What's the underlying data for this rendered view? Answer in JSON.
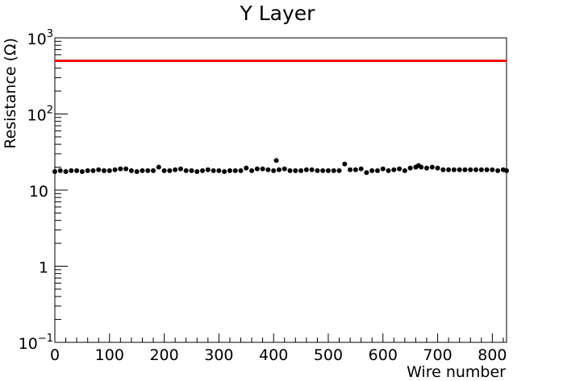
{
  "chart_data": {
    "type": "scatter",
    "title": "Y Layer",
    "x_label": "Wire number",
    "y_label": "Resistance (Ω)",
    "log_y": true,
    "xlim": [
      0,
      826
    ],
    "ylim": [
      0.1,
      1000
    ],
    "xticks": [
      0,
      100,
      200,
      300,
      400,
      500,
      600,
      700,
      800
    ],
    "yticks": [
      {
        "value": 0.1,
        "label": "10",
        "exponent": "−1"
      },
      1,
      10,
      {
        "value": 100,
        "label": "10",
        "exponent": "2"
      },
      {
        "value": 1000,
        "label": "10",
        "exponent": "3"
      }
    ],
    "hline": {
      "value": 500,
      "color": "#ff0000"
    },
    "series": [
      {
        "color": "#000000",
        "x": [
          0,
          10,
          20,
          30,
          40,
          50,
          60,
          70,
          80,
          90,
          100,
          110,
          120,
          130,
          140,
          150,
          160,
          170,
          180,
          190,
          200,
          210,
          220,
          230,
          240,
          250,
          260,
          270,
          280,
          290,
          300,
          310,
          320,
          330,
          340,
          350,
          360,
          370,
          380,
          390,
          400,
          405,
          410,
          420,
          430,
          440,
          450,
          460,
          470,
          480,
          490,
          500,
          510,
          520,
          530,
          540,
          550,
          560,
          570,
          580,
          590,
          600,
          610,
          620,
          630,
          640,
          650,
          660,
          665,
          670,
          680,
          690,
          700,
          710,
          720,
          730,
          740,
          750,
          760,
          770,
          780,
          790,
          800,
          810,
          820,
          826
        ],
        "y": [
          17.5,
          18,
          17.5,
          18,
          18,
          17.5,
          18,
          18,
          18.5,
          18,
          18,
          18.5,
          19,
          19,
          18,
          17.5,
          18,
          18,
          18,
          20,
          18,
          18,
          18.5,
          19,
          18,
          18,
          17.5,
          18,
          18.5,
          18,
          18,
          17.5,
          18,
          18,
          18,
          19.5,
          18,
          19,
          19,
          18.5,
          18,
          24.5,
          18.5,
          19,
          18,
          18,
          18,
          18.5,
          18.5,
          18,
          18,
          18,
          18,
          18,
          22,
          18.5,
          18.5,
          19,
          17,
          18,
          18,
          19,
          18,
          18.5,
          19,
          18,
          19.5,
          20,
          21,
          20,
          19.5,
          20,
          19.5,
          18.5,
          18.5,
          18.5,
          18.5,
          18.5,
          18.5,
          18.5,
          18.5,
          18.5,
          18.5,
          18,
          18.5,
          18
        ]
      }
    ]
  }
}
